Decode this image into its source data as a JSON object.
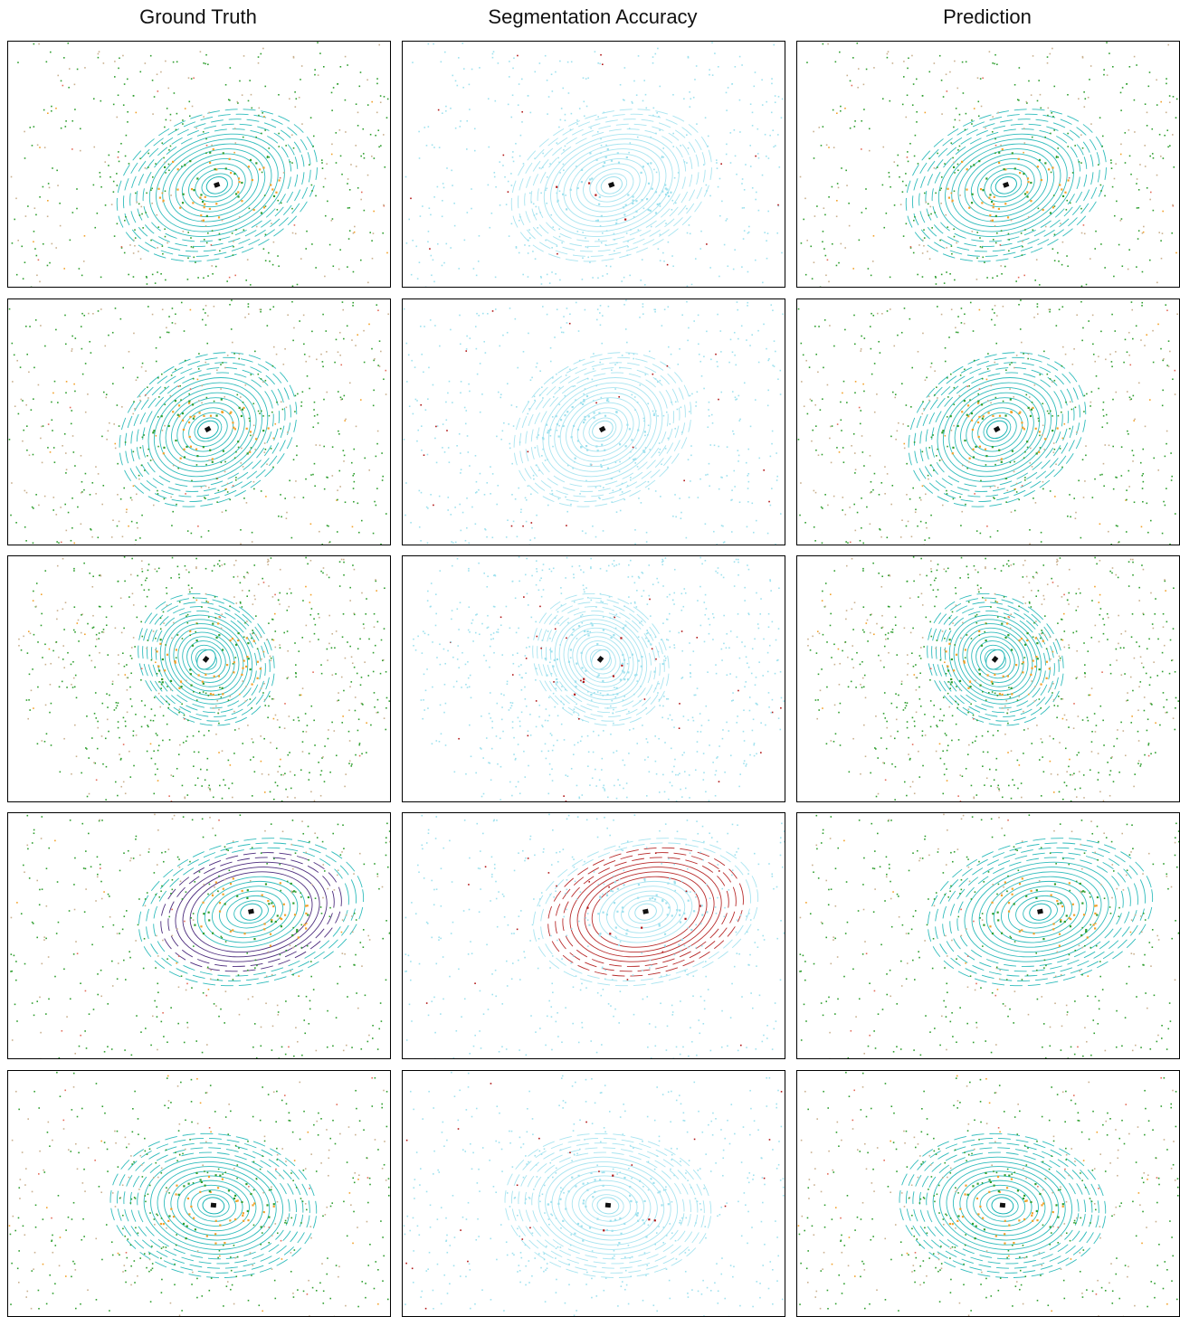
{
  "headers": {
    "ground_truth": "Ground Truth",
    "segmentation_accuracy": "Segmentation Accuracy",
    "prediction": "Prediction"
  },
  "colors": {
    "road": "#1ab5b5",
    "vegetation": "#2e9e2e",
    "building": "#c9b08f",
    "car": "#f2a12a",
    "person": "#e36c5a",
    "other_vehicle": "#3a1670",
    "correct": "#9ee1ee",
    "incorrect": "#b01515"
  },
  "rows": [
    {
      "id": "scene-1"
    },
    {
      "id": "scene-2"
    },
    {
      "id": "scene-3"
    },
    {
      "id": "scene-4"
    },
    {
      "id": "scene-5"
    }
  ]
}
